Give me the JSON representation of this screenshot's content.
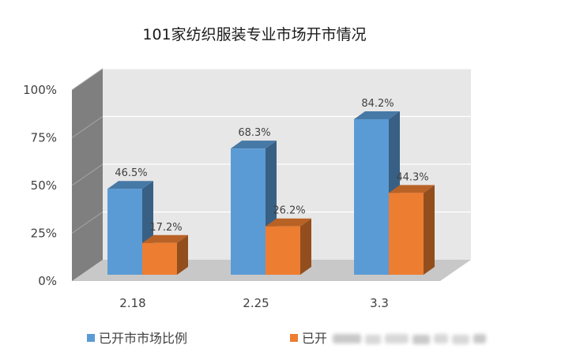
{
  "chart_data": {
    "type": "bar",
    "title": "101家纺织服装专业市场开市情况",
    "categories": [
      "2.18",
      "2.25",
      "3.3"
    ],
    "series": [
      {
        "name": "已开市市场比例",
        "values": [
          46.5,
          68.3,
          84.2
        ],
        "labels": [
          "46.5%",
          "68.3%",
          "84.2%"
        ],
        "color": "#5b9bd5"
      },
      {
        "name": "已开",
        "values": [
          17.2,
          26.2,
          44.3
        ],
        "labels": [
          "17.2%",
          "26.2%",
          "44.3%"
        ],
        "color": "#ed7d31"
      }
    ],
    "yticks": [
      "0%",
      "25%",
      "50%",
      "75%",
      "100%"
    ],
    "ylim": [
      0,
      100
    ],
    "grid": true,
    "legend": "bottom",
    "three_d": true
  }
}
